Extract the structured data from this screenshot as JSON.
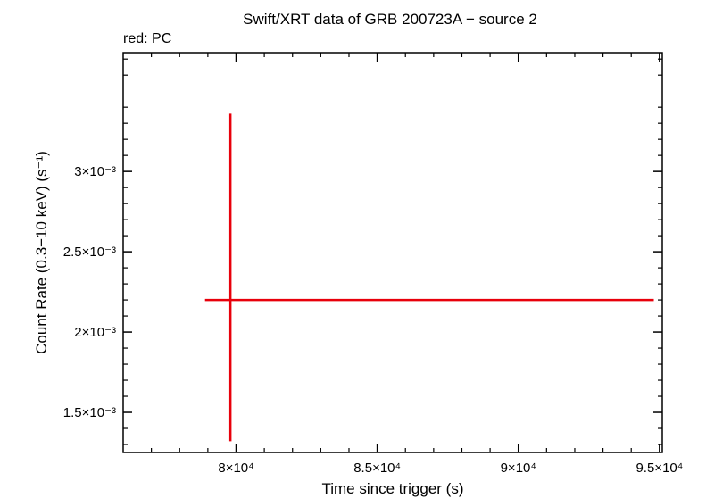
{
  "chart_data": {
    "type": "scatter",
    "title": "Swift/XRT data of GRB 200723A − source 2",
    "subtitle": "red: PC",
    "xlabel": "Time since trigger (s)",
    "ylabel": "Count Rate (0.3−10 keV) (s⁻¹)",
    "xlim": [
      76000,
      95100
    ],
    "ylim": [
      0.00125,
      0.00374
    ],
    "x_ticks": [
      {
        "value": 80000,
        "label": "8×10⁴"
      },
      {
        "value": 85000,
        "label": "8.5×10⁴"
      },
      {
        "value": 90000,
        "label": "9×10⁴"
      },
      {
        "value": 95000,
        "label": "9.5×10⁴"
      }
    ],
    "y_ticks": [
      {
        "value": 0.0015,
        "label": "1.5×10⁻³"
      },
      {
        "value": 0.002,
        "label": "2×10⁻³"
      },
      {
        "value": 0.0025,
        "label": "2.5×10⁻³"
      },
      {
        "value": 0.003,
        "label": "3×10⁻³"
      }
    ],
    "series": [
      {
        "color": "#e8000b",
        "points": [
          {
            "x": 79800,
            "y": 0.0022,
            "xerr": [
              78900,
              94800
            ],
            "yerr": [
              0.00132,
              0.00336
            ]
          }
        ]
      }
    ],
    "grid": false,
    "legend": "none"
  }
}
